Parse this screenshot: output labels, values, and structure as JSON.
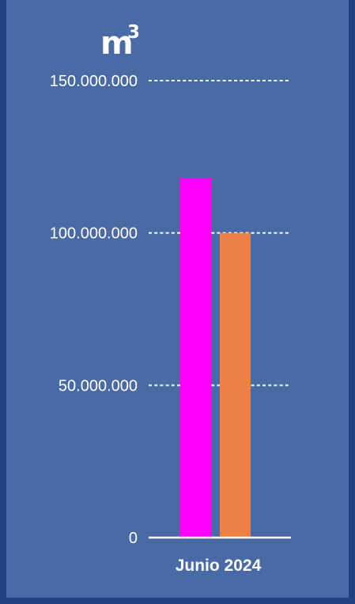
{
  "chart_data": {
    "type": "bar",
    "unit_label": "m",
    "unit_exponent": "3",
    "categories": [
      "Junio 2024"
    ],
    "series": [
      {
        "values": [
          118000000
        ],
        "color": "#ff00ff"
      },
      {
        "values": [
          100000000
        ],
        "color": "#ee7f45"
      }
    ],
    "ylim": [
      0,
      150000000
    ],
    "y_ticks": [
      0,
      50000000,
      100000000,
      150000000
    ],
    "y_tick_labels": [
      "0",
      "50.000.000",
      "100.000.000",
      "150.000.000"
    ],
    "grid": true,
    "grid_style": "dashed",
    "legend": false
  },
  "colors": {
    "background": "#4a6aa6",
    "frame": "#1f4184",
    "text": "#ffffff"
  }
}
